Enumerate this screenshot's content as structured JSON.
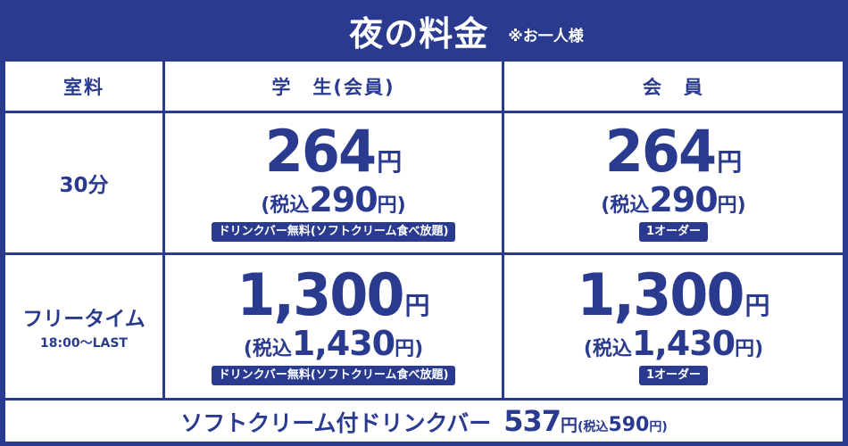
{
  "header": {
    "title": "夜の料金",
    "note": "※お一人様"
  },
  "colors": {
    "brand": "#2a3b8f",
    "background": "#ffffff",
    "text_on_brand": "#ffffff"
  },
  "table": {
    "headers": {
      "room": "室料",
      "student": "学　生(会員)",
      "member": "会　員"
    },
    "rows": [
      {
        "label": "30分",
        "sublabel": "",
        "student": {
          "price": "264",
          "unit": "円",
          "tax_open": "(",
          "tax_label": "税込",
          "tax_price": "290",
          "tax_unit": "円",
          "tax_close": ")",
          "badge": "ドリンクバー無料(ソフトクリーム食べ放題)"
        },
        "member": {
          "price": "264",
          "unit": "円",
          "tax_open": "(",
          "tax_label": "税込",
          "tax_price": "290",
          "tax_unit": "円",
          "tax_close": ")",
          "badge": "1オーダー"
        }
      },
      {
        "label": "フリータイム",
        "sublabel": "18:00～LAST",
        "student": {
          "price": "1,300",
          "unit": "円",
          "tax_open": "(",
          "tax_label": "税込",
          "tax_price": "1,430",
          "tax_unit": "円",
          "tax_close": ")",
          "badge": "ドリンクバー無料(ソフトクリーム食べ放題)"
        },
        "member": {
          "price": "1,300",
          "unit": "円",
          "tax_open": "(",
          "tax_label": "税込",
          "tax_price": "1,430",
          "tax_unit": "円",
          "tax_close": ")",
          "badge": "1オーダー"
        }
      }
    ]
  },
  "footer": {
    "name": "ソフトクリーム付ドリンクバー",
    "price": "537",
    "unit": "円",
    "tax_open": "(",
    "tax_label": "税込",
    "tax_price": "590",
    "tax_unit": "円",
    "tax_close": ")"
  }
}
